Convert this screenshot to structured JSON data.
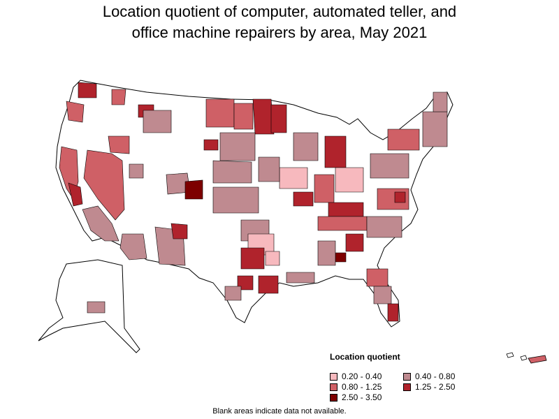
{
  "title": {
    "line1": "Location quotient of computer, automated teller, and",
    "line2": "office machine repairers by area, May 2021"
  },
  "legend": {
    "title": "Location quotient",
    "items": [
      {
        "label": "0.20 - 0.40",
        "color": "#f7b9be"
      },
      {
        "label": "0.40 - 0.80",
        "color": "#bf8a90"
      },
      {
        "label": "0.80 - 1.25",
        "color": "#cf6066"
      },
      {
        "label": "1.25 - 2.50",
        "color": "#b0232c"
      },
      {
        "label": "2.50 - 3.50",
        "color": "#7d0000"
      }
    ]
  },
  "footnote": "Blank areas indicate data not available.",
  "colors": {
    "blank": "#ffffff",
    "border": "#000000"
  }
}
